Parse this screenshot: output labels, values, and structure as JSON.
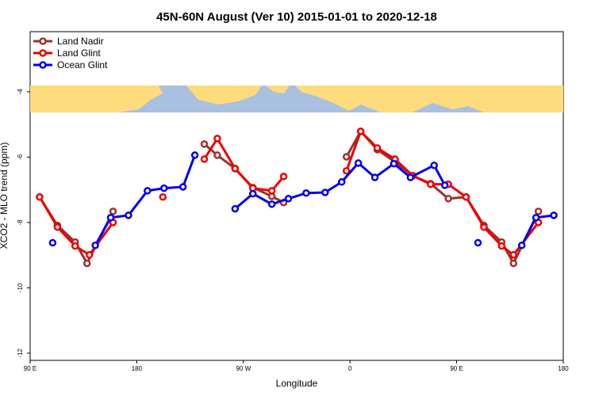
{
  "chart_data": {
    "type": "line",
    "title": "45N-60N August (Ver 10)   2015-01-01 to 2020-12-18",
    "x_label": "Longitude",
    "y_label": "XCO2 - MLO trend (ppm)",
    "xlim": [
      90,
      540
    ],
    "ylim": [
      -12.22,
      -2.16
    ],
    "xticks": [
      {
        "value": 90,
        "label": "90 E"
      },
      180,
      {
        "value": 270,
        "label": "90 W"
      },
      {
        "value": 360,
        "label": "0"
      },
      {
        "value": 450,
        "label": "90 E"
      },
      {
        "value": 540,
        "label": "180"
      }
    ],
    "yticks": [
      -12,
      -10,
      -8,
      -6,
      -4
    ],
    "legend": "upper left",
    "series": [
      {
        "name": "Land Nadir",
        "color": "#a0302c",
        "x": [
          98,
          113,
          128,
          138,
          160,
          null,
          237,
          248,
          263,
          278,
          294,
          304,
          null,
          357,
          369,
          383,
          398,
          413,
          428,
          443,
          458,
          473,
          488,
          498,
          519
        ],
        "values": [
          -7.22,
          -8.09,
          -8.6,
          -9.25,
          -7.66,
          null,
          -5.6,
          -5.94,
          -6.35,
          -6.93,
          -7.2,
          -7.39,
          null,
          -5.99,
          -5.21,
          -5.77,
          -6.15,
          -6.57,
          -6.81,
          -7.27,
          -7.22,
          -8.09,
          -8.6,
          -9.25,
          -7.66
        ]
      },
      {
        "name": "Land Glint",
        "color": "#ee0000",
        "x": [
          98,
          113,
          128,
          140,
          160,
          null,
          202,
          null,
          237,
          248,
          263,
          278,
          294,
          304,
          null,
          357,
          369,
          383,
          398,
          413,
          428,
          443,
          458,
          473,
          488,
          498,
          519
        ],
        "values": [
          -7.22,
          -8.14,
          -8.72,
          -8.99,
          -8.0,
          null,
          -7.22,
          null,
          -6.06,
          -5.43,
          -6.35,
          -6.95,
          -7.03,
          -6.59,
          null,
          -6.42,
          -5.21,
          -5.72,
          -6.06,
          -6.57,
          -6.83,
          -6.83,
          -7.22,
          -8.14,
          -8.72,
          -8.99,
          -8.0
        ]
      },
      {
        "name": "Ocean Glint",
        "color": "#0000ee",
        "x": [
          109,
          null,
          145,
          158,
          173,
          189,
          203,
          219,
          229,
          null,
          263,
          278,
          294,
          308,
          323,
          339,
          353,
          367,
          381,
          397,
          411,
          431,
          440,
          null,
          468,
          null,
          505,
          517,
          532
        ],
        "values": [
          -8.62,
          null,
          -8.7,
          -7.85,
          -7.78,
          -7.03,
          -6.95,
          -6.91,
          -5.94,
          null,
          -7.58,
          -7.12,
          -7.44,
          -7.27,
          -7.1,
          -7.08,
          -6.76,
          -6.18,
          -6.62,
          -6.2,
          -6.62,
          -6.25,
          -6.86,
          null,
          -8.62,
          null,
          -8.7,
          -7.85,
          -7.78
        ]
      }
    ]
  }
}
